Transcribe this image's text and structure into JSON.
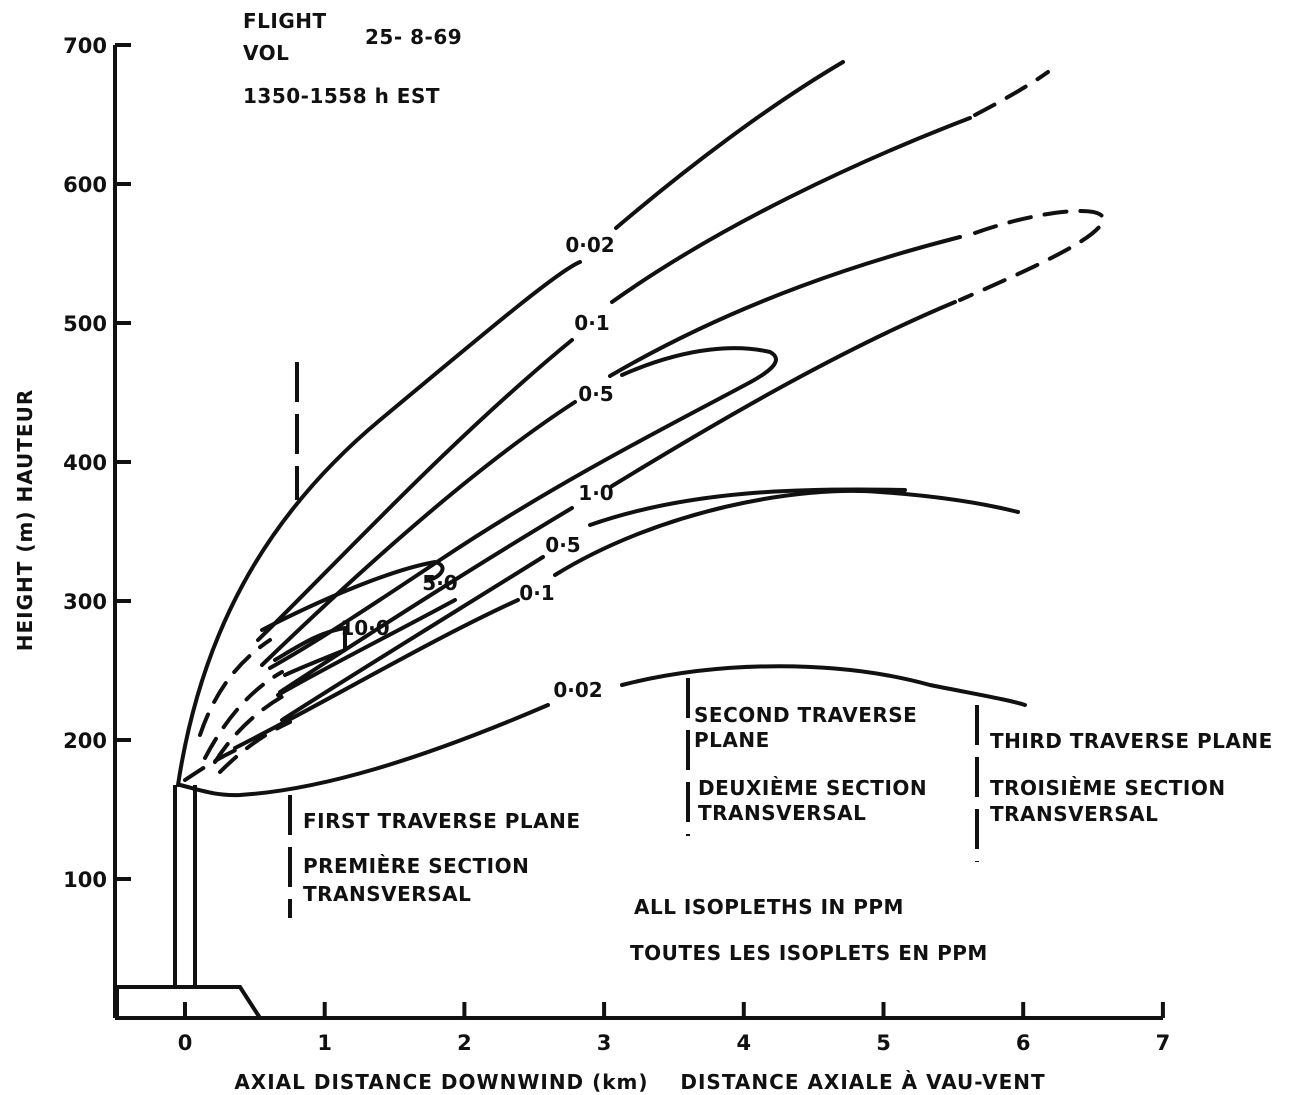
{
  "chart_data": {
    "type": "line",
    "title": "",
    "header": {
      "flight_line1": "FLIGHT",
      "flight_line2": "VOL",
      "date": "25- 8-69",
      "time": "1350-1558 h EST"
    },
    "xlabel": "AXIAL DISTANCE DOWNWIND (km)    DISTANCE AXIALE À VAU-VENT",
    "ylabel": "HEIGHT (m) HAUTEUR",
    "xlim": [
      -0.5,
      7
    ],
    "ylim": [
      0,
      700
    ],
    "x_ticks": [
      0,
      1,
      2,
      3,
      4,
      5,
      6,
      7
    ],
    "y_ticks": [
      100,
      200,
      300,
      400,
      500,
      600,
      700
    ],
    "x_tick_labels": [
      "0",
      "1",
      "2",
      "3",
      "4",
      "5",
      "6",
      "7"
    ],
    "y_tick_labels": [
      "100",
      "200",
      "300",
      "400",
      "500",
      "600",
      "700"
    ],
    "grid": false,
    "contours": [
      {
        "label": "0·02",
        "label_at": [
          2.9,
          555
        ],
        "dashed_to": null,
        "points": [
          [
            0,
            168
          ],
          [
            0.5,
            280
          ],
          [
            1,
            370
          ],
          [
            2,
            470
          ],
          [
            3,
            580
          ],
          [
            4,
            640
          ],
          [
            4.7,
            685
          ]
        ]
      },
      {
        "label": "0·1",
        "label_at": [
          2.9,
          487
        ],
        "points": [
          [
            2.8,
            465
          ],
          [
            4,
            570
          ],
          [
            5,
            630
          ],
          [
            5.6,
            660
          ],
          [
            6.2,
            680
          ]
        ]
      },
      {
        "label": "0·5",
        "label_at": [
          3.0,
          440
        ],
        "points": [
          [
            2.6,
            430
          ],
          [
            3.5,
            470
          ],
          [
            4.2,
            475
          ],
          [
            3.7,
            450
          ],
          [
            2.8,
            400
          ]
        ]
      },
      {
        "label": "1·0",
        "label_at": [
          2.9,
          375
        ],
        "points": [
          [
            2.7,
            350
          ],
          [
            3.5,
            380
          ],
          [
            4.3,
            390
          ]
        ]
      },
      {
        "label": "0·5",
        "label_at": [
          2.7,
          338
        ],
        "points": [
          [
            2.4,
            325
          ],
          [
            3.2,
            355
          ],
          [
            4,
            370
          ]
        ]
      },
      {
        "label": "0·1",
        "label_at": [
          2.5,
          306
        ],
        "points": [
          [
            2.3,
            300
          ],
          [
            3,
            340
          ],
          [
            4,
            375
          ],
          [
            5,
            375
          ],
          [
            6,
            360
          ]
        ]
      },
      {
        "label": "5·0",
        "label_at": [
          1.8,
          308
        ],
        "points": [
          [
            1.3,
            305
          ],
          [
            1.8,
            322
          ],
          [
            1.6,
            300
          ],
          [
            1.1,
            280
          ]
        ]
      },
      {
        "label": "10·0",
        "label_at": [
          1.3,
          276
        ],
        "points": [
          [
            0.7,
            260
          ],
          [
            1.1,
            270
          ],
          [
            1.2,
            280
          ]
        ]
      },
      {
        "label": "0·02",
        "label_at": [
          2.7,
          235
        ],
        "points": [
          [
            0,
            168
          ],
          [
            0.5,
            160
          ],
          [
            1.5,
            180
          ],
          [
            2.7,
            238
          ],
          [
            4,
            253
          ],
          [
            5,
            245
          ],
          [
            6,
            222
          ]
        ]
      }
    ],
    "traverse_planes": [
      {
        "x": 0.75,
        "labels": [
          "FIRST TRAVERSE PLANE",
          "PREMIÈRE SECTION",
          "TRANSVERSAL"
        ]
      },
      {
        "x": 3.6,
        "labels": [
          "SECOND TRAVERSE",
          "PLANE",
          "DEUXIÈME SECTION",
          "TRANSVERSAL"
        ]
      },
      {
        "x": 5.65,
        "labels": [
          "THIRD TRAVERSE PLANE",
          "TROISIÈME SECTION",
          "TRANSVERSAL"
        ]
      }
    ],
    "notes": [
      "ALL ISOPLETHS IN PPM",
      "TOUTES LES ISOPLETS EN PPM"
    ]
  }
}
